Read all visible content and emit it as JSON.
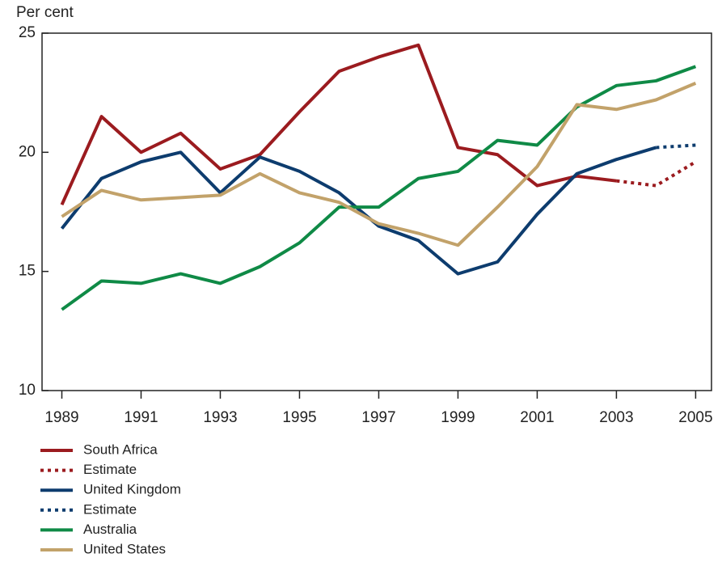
{
  "chart_data": {
    "type": "line",
    "ylabel": "Per cent",
    "x": [
      1989,
      1990,
      1991,
      1992,
      1993,
      1994,
      1995,
      1996,
      1997,
      1998,
      1999,
      2000,
      2001,
      2002,
      2003,
      2004,
      2005
    ],
    "xlim": [
      1988.5,
      2005.4
    ],
    "xticks": [
      1989,
      1991,
      1993,
      1995,
      1997,
      1999,
      2001,
      2003,
      2005
    ],
    "ylim": [
      10,
      25
    ],
    "yticks": [
      10,
      15,
      20,
      25
    ],
    "series": [
      {
        "name": "South Africa",
        "color": "#9b1b1f",
        "dashed": false,
        "values": [
          17.8,
          21.5,
          20.0,
          20.8,
          19.3,
          19.9,
          21.7,
          23.4,
          24.0,
          24.5,
          20.2,
          19.9,
          18.6,
          19.0,
          18.8,
          null,
          null
        ]
      },
      {
        "name": "Estimate",
        "color": "#9b1b1f",
        "dashed": true,
        "values": [
          null,
          null,
          null,
          null,
          null,
          null,
          null,
          null,
          null,
          null,
          null,
          null,
          null,
          null,
          18.8,
          18.6,
          19.6
        ]
      },
      {
        "name": "United Kingdom",
        "color": "#0d3c6e",
        "dashed": false,
        "values": [
          16.8,
          18.9,
          19.6,
          20.0,
          18.3,
          19.8,
          19.2,
          18.3,
          16.9,
          16.3,
          14.9,
          15.4,
          17.4,
          19.1,
          19.7,
          20.2,
          null
        ]
      },
      {
        "name": "Estimate",
        "color": "#0d3c6e",
        "dashed": true,
        "values": [
          null,
          null,
          null,
          null,
          null,
          null,
          null,
          null,
          null,
          null,
          null,
          null,
          null,
          null,
          null,
          20.2,
          20.3
        ]
      },
      {
        "name": "Australia",
        "color": "#0f8a46",
        "dashed": false,
        "values": [
          13.4,
          14.6,
          14.5,
          14.9,
          14.5,
          15.2,
          16.2,
          17.7,
          17.7,
          18.9,
          19.2,
          20.5,
          20.3,
          21.9,
          22.8,
          23.0,
          23.6
        ]
      },
      {
        "name": "United States",
        "color": "#c2a26a",
        "dashed": false,
        "values": [
          17.3,
          18.4,
          18.0,
          18.1,
          18.2,
          19.1,
          18.3,
          17.9,
          17.0,
          16.6,
          16.1,
          17.7,
          19.4,
          22.0,
          21.8,
          22.2,
          22.9
        ]
      }
    ]
  }
}
